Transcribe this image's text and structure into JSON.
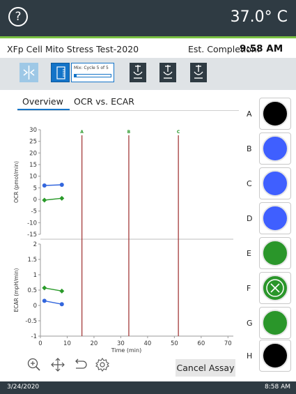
{
  "header": {
    "help_glyph": "?",
    "temperature": "37.0° C"
  },
  "info": {
    "assay_name": "XFp Cell Mito Stress Test-2020",
    "est_label": "Est. Completion:",
    "est_time": "9:58 AM"
  },
  "steps": {
    "mix_label": "Mix: Cycle 5 of 5",
    "mix_progress": 0.05,
    "icons": [
      "calibration-icon",
      "mix-icon",
      "injection-icon",
      "injection-icon",
      "injection-icon"
    ]
  },
  "tabs": [
    {
      "label": "Overview",
      "active": true
    },
    {
      "label": "OCR vs. ECAR",
      "active": false
    }
  ],
  "chart_data": [
    {
      "type": "line",
      "ylabel": "OCR (pmol/min)",
      "ylim": [
        -15,
        30
      ],
      "yticks": [
        30,
        25,
        20,
        15,
        10,
        5,
        0,
        -5,
        -10,
        -15
      ],
      "series": [
        {
          "color": "#3366dd",
          "marker": "circle",
          "x": [
            1.5,
            8
          ],
          "y": [
            6,
            6.3
          ]
        },
        {
          "color": "#2a9a2a",
          "marker": "diamond",
          "x": [
            1.5,
            8
          ],
          "y": [
            -0.3,
            0.5
          ]
        }
      ]
    },
    {
      "type": "line",
      "ylabel": "ECAR (mpH/min)",
      "xlabel": "Time (min)",
      "ylim": [
        -1,
        2
      ],
      "yticks": [
        2,
        1.5,
        1,
        0.5,
        0,
        -0.5,
        -1
      ],
      "xlim": [
        0,
        72
      ],
      "xticks": [
        0,
        10,
        20,
        30,
        40,
        50,
        60,
        70
      ],
      "series": [
        {
          "color": "#2a9a2a",
          "marker": "diamond",
          "x": [
            1.5,
            8
          ],
          "y": [
            0.57,
            0.47
          ]
        },
        {
          "color": "#3366dd",
          "marker": "circle",
          "x": [
            1.5,
            8
          ],
          "y": [
            0.15,
            0.04
          ]
        }
      ]
    }
  ],
  "injections": [
    {
      "label": "A",
      "time": 15.5
    },
    {
      "label": "B",
      "time": 33
    },
    {
      "label": "C",
      "time": 51.5
    }
  ],
  "injection_color": "#a33a3a",
  "toolbar": {
    "cancel_label": "Cancel Assay",
    "icons": [
      "zoom-in-icon",
      "move-icon",
      "undo-icon",
      "settings-icon"
    ]
  },
  "wells": [
    {
      "label": "A",
      "color": "#000000",
      "state": "filled"
    },
    {
      "label": "B",
      "color": "#3f5fff",
      "state": "filled"
    },
    {
      "label": "C",
      "color": "#3f5fff",
      "state": "filled"
    },
    {
      "label": "D",
      "color": "#3f5fff",
      "state": "filled"
    },
    {
      "label": "E",
      "color": "#2a962a",
      "state": "filled"
    },
    {
      "label": "F",
      "color": "#2a962a",
      "state": "excluded"
    },
    {
      "label": "G",
      "color": "#2a962a",
      "state": "filled"
    },
    {
      "label": "H",
      "color": "#000000",
      "state": "filled"
    }
  ],
  "status": {
    "date": "3/24/2020",
    "time": "8:58 AM"
  }
}
